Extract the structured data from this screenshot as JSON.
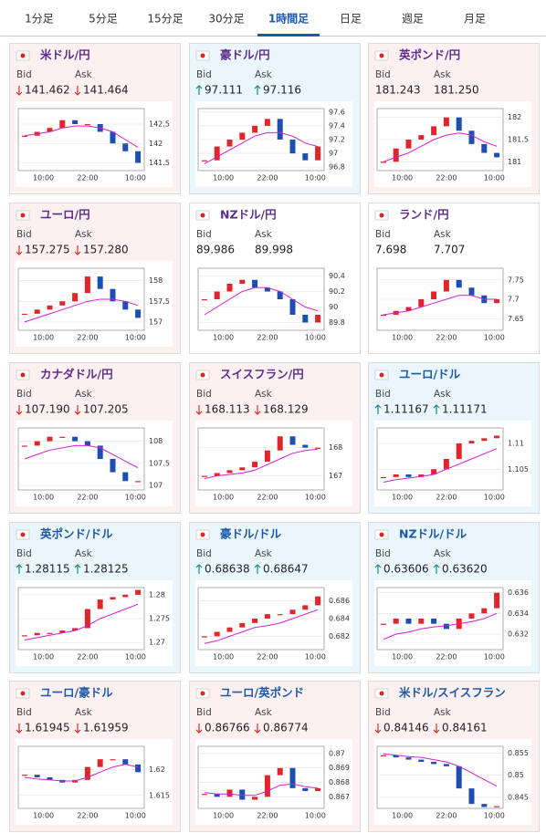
{
  "tabs": [
    "1分足",
    "5分足",
    "15分足",
    "30分足",
    "1時間足",
    "日足",
    "週足",
    "月足"
  ],
  "active_tab": 4,
  "labels": {
    "bid": "Bid",
    "ask": "Ask"
  },
  "cards": [
    {
      "title": "米ドル/円",
      "title_color": "#5b2d8e",
      "background": "#fdf0f0",
      "arrow": "down",
      "bid": "141.462",
      "ask": "141.464",
      "chart": {
        "type": "candlestick",
        "ylim": [
          141.3,
          142.9
        ],
        "yticks": [
          142.5,
          142,
          141.5
        ],
        "x_labels": [
          "10:00",
          "22:00",
          "10:00"
        ],
        "close": [
          142.2,
          142.3,
          142.4,
          142.6,
          142.5,
          142.5,
          142.3,
          142.0,
          141.8,
          141.5
        ],
        "ma": [
          142.2,
          142.25,
          142.3,
          142.4,
          142.45,
          142.45,
          142.4,
          142.3,
          142.1,
          141.9
        ],
        "up_color": "#e0262a",
        "down_color": "#1c4fb0",
        "ma_color": "#d020d0"
      }
    },
    {
      "title": "豪ドル/円",
      "title_color": "#5b2d8e",
      "background": "#eaf5fc",
      "arrow": "up",
      "bid": "97.111",
      "ask": "97.116",
      "chart": {
        "type": "candlestick",
        "ylim": [
          96.75,
          97.65
        ],
        "yticks": [
          97.6,
          97.4,
          97.2,
          97,
          96.8
        ],
        "x_labels": [
          "10:00",
          "22:00",
          "10:00"
        ],
        "close": [
          96.9,
          97.1,
          97.2,
          97.3,
          97.4,
          97.5,
          97.2,
          97.0,
          96.9,
          97.1
        ],
        "ma": [
          96.85,
          96.95,
          97.05,
          97.15,
          97.25,
          97.3,
          97.3,
          97.25,
          97.15,
          97.1
        ],
        "up_color": "#e0262a",
        "down_color": "#1c4fb0",
        "ma_color": "#d020d0"
      }
    },
    {
      "title": "英ポンド/円",
      "title_color": "#5b2d8e",
      "background": "#fdf0f0",
      "bid": "181.243",
      "ask": "181.250",
      "chart": {
        "type": "candlestick",
        "ylim": [
          180.8,
          182.2
        ],
        "yticks": [
          182,
          181.5,
          181
        ],
        "x_labels": [
          "10:00",
          "22:00",
          "10:00"
        ],
        "close": [
          181.0,
          181.3,
          181.5,
          181.6,
          181.8,
          182.0,
          181.7,
          181.4,
          181.2,
          181.1
        ],
        "ma": [
          181.0,
          181.1,
          181.2,
          181.35,
          181.5,
          181.6,
          181.65,
          181.6,
          181.45,
          181.35
        ],
        "up_color": "#e0262a",
        "down_color": "#1c4fb0",
        "ma_color": "#d020d0"
      }
    },
    {
      "title": "ユーロ/円",
      "title_color": "#5b2d8e",
      "background": "#fdf0f0",
      "arrow": "down",
      "bid": "157.275",
      "ask": "157.280",
      "chart": {
        "type": "candlestick",
        "ylim": [
          156.8,
          158.3
        ],
        "yticks": [
          158,
          157.5,
          157
        ],
        "x_labels": [
          "10:00",
          "22:00",
          "10:00"
        ],
        "close": [
          157.2,
          157.3,
          157.4,
          157.5,
          157.7,
          158.1,
          157.8,
          157.5,
          157.3,
          157.1
        ],
        "ma": [
          157.0,
          157.1,
          157.2,
          157.3,
          157.4,
          157.5,
          157.55,
          157.55,
          157.5,
          157.4
        ],
        "up_color": "#e0262a",
        "down_color": "#1c4fb0",
        "ma_color": "#d020d0"
      }
    },
    {
      "title": "NZドル/円",
      "title_color": "#5b2d8e",
      "background": "#ffffff",
      "bid": "89.986",
      "ask": "89.998",
      "chart": {
        "type": "candlestick",
        "ylim": [
          89.7,
          90.5
        ],
        "yticks": [
          90.4,
          90.2,
          90,
          89.8
        ],
        "x_labels": [
          "10:00",
          "22:00",
          "10:00"
        ],
        "close": [
          90.1,
          90.2,
          90.3,
          90.35,
          90.25,
          90.2,
          90.1,
          89.9,
          89.8,
          89.9
        ],
        "ma": [
          89.9,
          90.0,
          90.1,
          90.2,
          90.25,
          90.25,
          90.2,
          90.1,
          90.0,
          89.95
        ],
        "up_color": "#e0262a",
        "down_color": "#1c4fb0",
        "ma_color": "#d020d0"
      }
    },
    {
      "title": "ランド/円",
      "title_color": "#5b2d8e",
      "background": "#ffffff",
      "bid": "7.698",
      "ask": "7.707",
      "chart": {
        "type": "candlestick",
        "ylim": [
          7.62,
          7.78
        ],
        "yticks": [
          7.75,
          7.7,
          7.65
        ],
        "x_labels": [
          "10:00",
          "22:00",
          "10:00"
        ],
        "close": [
          7.66,
          7.67,
          7.68,
          7.7,
          7.72,
          7.75,
          7.73,
          7.71,
          7.69,
          7.7
        ],
        "ma": [
          7.66,
          7.665,
          7.67,
          7.68,
          7.69,
          7.7,
          7.71,
          7.71,
          7.7,
          7.7
        ],
        "up_color": "#e0262a",
        "down_color": "#1c4fb0",
        "ma_color": "#d020d0"
      }
    },
    {
      "title": "カナダドル/円",
      "title_color": "#5b2d8e",
      "background": "#fdf0f0",
      "arrow": "down",
      "bid": "107.190",
      "ask": "107.205",
      "chart": {
        "type": "candlestick",
        "ylim": [
          106.9,
          108.3
        ],
        "yticks": [
          108,
          107.5,
          107
        ],
        "x_labels": [
          "10:00",
          "22:00",
          "10:00"
        ],
        "close": [
          107.9,
          108.0,
          108.1,
          108.1,
          108.0,
          107.9,
          107.6,
          107.3,
          107.1,
          107.1
        ],
        "ma": [
          107.6,
          107.7,
          107.8,
          107.85,
          107.9,
          107.9,
          107.85,
          107.7,
          107.55,
          107.4
        ],
        "up_color": "#e0262a",
        "down_color": "#1c4fb0",
        "ma_color": "#d020d0"
      }
    },
    {
      "title": "スイスフラン/円",
      "title_color": "#5b2d8e",
      "background": "#fdf0f0",
      "arrow": "down",
      "bid": "168.113",
      "ask": "168.129",
      "chart": {
        "type": "candlestick",
        "ylim": [
          166.5,
          168.7
        ],
        "yticks": [
          168,
          167
        ],
        "x_labels": [
          "10:00",
          "22:00",
          "10:00"
        ],
        "close": [
          167.0,
          167.1,
          167.2,
          167.3,
          167.5,
          167.9,
          168.4,
          168.1,
          168.0,
          168.0
        ],
        "ma": [
          166.9,
          167.0,
          167.05,
          167.1,
          167.2,
          167.4,
          167.6,
          167.8,
          167.9,
          167.95
        ],
        "up_color": "#e0262a",
        "down_color": "#1c4fb0",
        "ma_color": "#d020d0"
      }
    },
    {
      "title": "ユーロ/ドル",
      "title_color": "#1c5aa5",
      "background": "#eaf5fc",
      "arrow": "up",
      "bid": "1.11167",
      "ask": "1.11171",
      "chart": {
        "type": "candlestick",
        "ylim": [
          1.101,
          1.113
        ],
        "yticks": [
          1.11,
          1.105
        ],
        "x_labels": [
          "10:00",
          "22:00",
          "10:00"
        ],
        "close": [
          1.1035,
          1.104,
          1.1035,
          1.104,
          1.105,
          1.107,
          1.11,
          1.1105,
          1.111,
          1.1115
        ],
        "ma": [
          1.1025,
          1.103,
          1.1033,
          1.1036,
          1.104,
          1.105,
          1.106,
          1.107,
          1.108,
          1.109
        ],
        "up_color": "#e0262a",
        "down_color": "#1c4fb0",
        "ma_color": "#d020d0"
      }
    },
    {
      "title": "英ポンド/ドル",
      "title_color": "#1c5aa5",
      "background": "#eaf5fc",
      "arrow": "up",
      "bid": "1.28115",
      "ask": "1.28125",
      "chart": {
        "type": "candlestick",
        "ylim": [
          1.2685,
          1.2815
        ],
        "yticks": [
          1.28,
          1.275,
          1.27
        ],
        "x_labels": [
          "10:00",
          "22:00",
          "10:00"
        ],
        "close": [
          1.2715,
          1.272,
          1.272,
          1.2725,
          1.273,
          1.277,
          1.279,
          1.2795,
          1.28,
          1.281
        ],
        "ma": [
          1.2705,
          1.271,
          1.2715,
          1.272,
          1.2725,
          1.2735,
          1.275,
          1.276,
          1.277,
          1.278
        ],
        "up_color": "#e0262a",
        "down_color": "#1c4fb0",
        "ma_color": "#d020d0"
      }
    },
    {
      "title": "豪ドル/ドル",
      "title_color": "#1c5aa5",
      "background": "#eaf5fc",
      "arrow": "up",
      "bid": "0.68638",
      "ask": "0.68647",
      "chart": {
        "type": "candlestick",
        "ylim": [
          0.6805,
          0.6875
        ],
        "yticks": [
          0.686,
          0.684,
          0.682
        ],
        "x_labels": [
          "10:00",
          "22:00",
          "10:00"
        ],
        "close": [
          0.682,
          0.6825,
          0.683,
          0.6835,
          0.684,
          0.6845,
          0.6845,
          0.685,
          0.6855,
          0.6865
        ],
        "ma": [
          0.6812,
          0.6815,
          0.682,
          0.6825,
          0.683,
          0.6832,
          0.6835,
          0.684,
          0.6845,
          0.685
        ],
        "up_color": "#e0262a",
        "down_color": "#1c4fb0",
        "ma_color": "#d020d0"
      }
    },
    {
      "title": "NZドル/ドル",
      "title_color": "#1c5aa5",
      "background": "#eaf5fc",
      "arrow": "up",
      "bid": "0.63606",
      "ask": "0.63620",
      "chart": {
        "type": "candlestick",
        "ylim": [
          0.6305,
          0.6365
        ],
        "yticks": [
          0.636,
          0.634,
          0.632
        ],
        "x_labels": [
          "10:00",
          "22:00",
          "10:00"
        ],
        "close": [
          0.633,
          0.6335,
          0.633,
          0.6335,
          0.633,
          0.6325,
          0.6335,
          0.634,
          0.6345,
          0.636
        ],
        "ma": [
          0.6315,
          0.632,
          0.6322,
          0.6325,
          0.6327,
          0.6328,
          0.633,
          0.6332,
          0.6335,
          0.634
        ],
        "up_color": "#e0262a",
        "down_color": "#1c4fb0",
        "ma_color": "#d020d0"
      }
    },
    {
      "title": "ユーロ/豪ドル",
      "title_color": "#1c5aa5",
      "background": "#fdf0f0",
      "arrow": "down",
      "bid": "1.61945",
      "ask": "1.61959",
      "chart": {
        "type": "candlestick",
        "ylim": [
          1.6125,
          1.6245
        ],
        "yticks": [
          1.62,
          1.615
        ],
        "x_labels": [
          "10:00",
          "22:00",
          "10:00"
        ],
        "close": [
          1.619,
          1.6185,
          1.618,
          1.6175,
          1.618,
          1.6205,
          1.622,
          1.622,
          1.621,
          1.6195
        ],
        "ma": [
          1.6185,
          1.6182,
          1.618,
          1.6178,
          1.6178,
          1.6185,
          1.6195,
          1.6205,
          1.621,
          1.6205
        ],
        "up_color": "#e0262a",
        "down_color": "#1c4fb0",
        "ma_color": "#d020d0"
      }
    },
    {
      "title": "ユーロ/英ポンド",
      "title_color": "#1c5aa5",
      "background": "#fdf0f0",
      "arrow": "down",
      "bid": "0.86766",
      "ask": "0.86774",
      "chart": {
        "type": "candlestick",
        "ylim": [
          0.8662,
          0.8705
        ],
        "yticks": [
          0.87,
          0.869,
          0.868,
          0.867
        ],
        "x_labels": [
          "10:00",
          "22:00",
          "10:00"
        ],
        "close": [
          0.8672,
          0.867,
          0.8675,
          0.8668,
          0.867,
          0.8685,
          0.869,
          0.8676,
          0.8674,
          0.8676
        ],
        "ma": [
          0.8673,
          0.8672,
          0.8672,
          0.8671,
          0.8671,
          0.8674,
          0.8678,
          0.8679,
          0.8677,
          0.8676
        ],
        "up_color": "#e0262a",
        "down_color": "#1c4fb0",
        "ma_color": "#d020d0"
      }
    },
    {
      "title": "米ドル/スイスフラン",
      "title_color": "#1c5aa5",
      "background": "#fdf0f0",
      "arrow": "down",
      "bid": "0.84146",
      "ask": "0.84161",
      "chart": {
        "type": "candlestick",
        "ylim": [
          0.8425,
          0.8565
        ],
        "yticks": [
          0.855,
          0.85,
          0.845
        ],
        "x_labels": [
          "10:00",
          "22:00",
          "10:00"
        ],
        "close": [
          0.8545,
          0.854,
          0.8535,
          0.853,
          0.8525,
          0.852,
          0.847,
          0.8435,
          0.8428,
          0.843
        ],
        "ma": [
          0.8548,
          0.8545,
          0.8542,
          0.854,
          0.8535,
          0.853,
          0.852,
          0.8505,
          0.849,
          0.8475
        ],
        "up_color": "#e0262a",
        "down_color": "#1c4fb0",
        "ma_color": "#d020d0"
      }
    }
  ]
}
